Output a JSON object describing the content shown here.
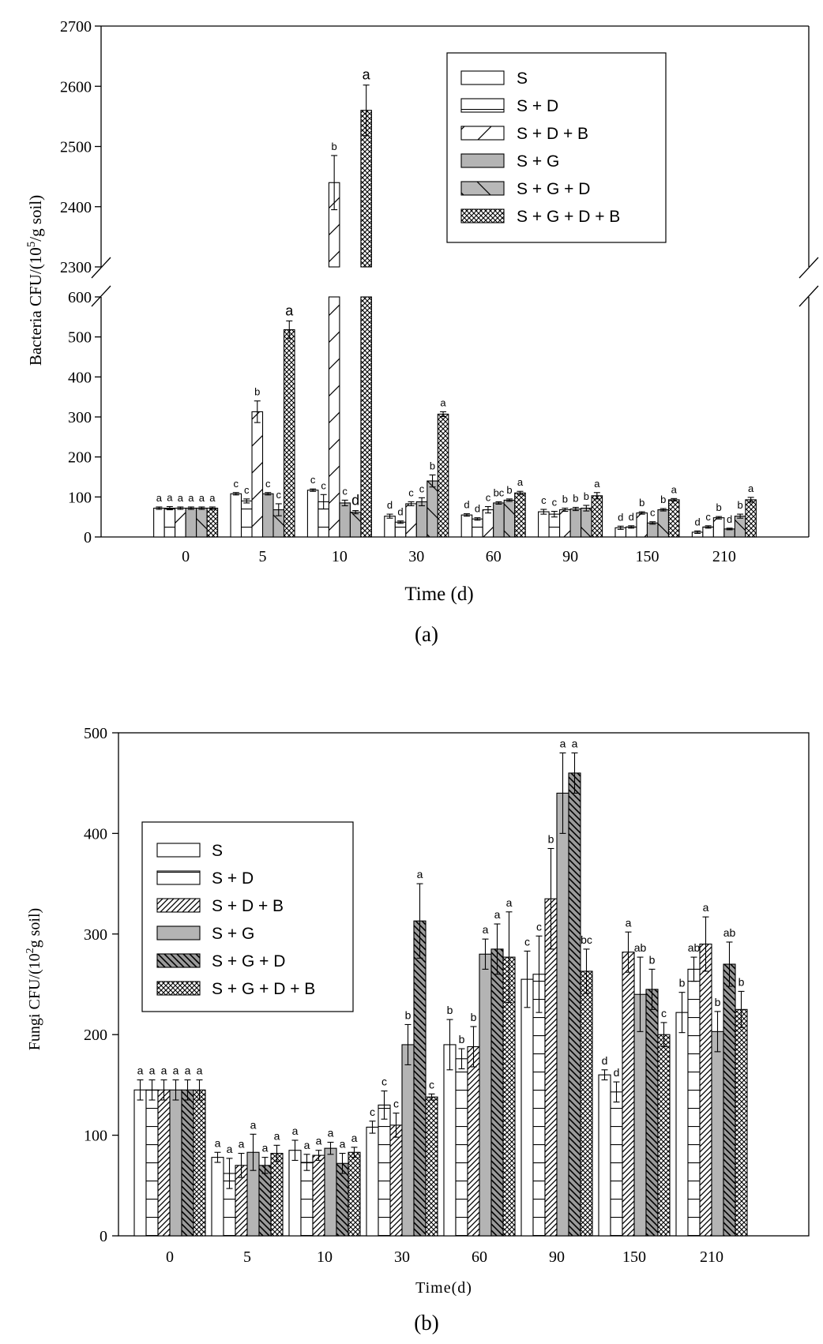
{
  "chart_data": [
    {
      "type": "bar",
      "title": "",
      "caption": "(a)",
      "xlabel": "Time (d)",
      "ylabel": "Bacteria CFU/(10^5/g soil)",
      "ylabel_parts": {
        "pre": "Bacteria CFU/(10",
        "sup": "5",
        "post": "/g soil)"
      },
      "categories": [
        "0",
        "5",
        "10",
        "30",
        "60",
        "90",
        "150",
        "210"
      ],
      "axis_break": {
        "lower_range": [
          0,
          600
        ],
        "upper_range": [
          2300,
          2700
        ]
      },
      "yticks_lower": [
        "0",
        "100",
        "200",
        "300",
        "400",
        "500",
        "600"
      ],
      "yticks_upper": [
        "2300",
        "2400",
        "2500",
        "2600",
        "2700"
      ],
      "legend_position": "top-right",
      "series": [
        {
          "name": "S",
          "pattern": "open",
          "values": [
            72,
            108,
            117,
            52,
            55,
            63,
            23,
            12
          ],
          "errors": [
            3,
            3,
            3,
            5,
            3,
            6,
            4,
            3
          ],
          "letters": [
            "a",
            "c",
            "c",
            "d",
            "d",
            "c",
            "d",
            "d"
          ]
        },
        {
          "name": "S + D",
          "pattern": "horizontal",
          "values": [
            72,
            90,
            88,
            37,
            45,
            57,
            25,
            25
          ],
          "errors": [
            4,
            5,
            18,
            3,
            3,
            7,
            3,
            3
          ],
          "letters": [
            "a",
            "c",
            "c",
            "d",
            "d",
            "c",
            "d",
            "c"
          ]
        },
        {
          "name": "S + D + B",
          "pattern": "wide-diagonal",
          "values": [
            72,
            313,
            2440,
            83,
            68,
            68,
            60,
            48
          ],
          "errors": [
            3,
            27,
            45,
            5,
            8,
            4,
            3,
            3
          ],
          "letters": [
            "a",
            "b",
            "b",
            "c",
            "c",
            "b",
            "b",
            "b"
          ]
        },
        {
          "name": "S + G",
          "pattern": "gray",
          "values": [
            72,
            108,
            85,
            88,
            85,
            70,
            35,
            20
          ],
          "errors": [
            3,
            3,
            7,
            10,
            3,
            4,
            3,
            2
          ],
          "letters": [
            "a",
            "c",
            "c",
            "c",
            "bc",
            "b",
            "c",
            "d"
          ]
        },
        {
          "name": "S + G + D",
          "pattern": "gray-backdiagonal",
          "values": [
            72,
            68,
            62,
            140,
            92,
            72,
            68,
            52
          ],
          "errors": [
            3,
            15,
            4,
            15,
            3,
            7,
            3,
            5
          ],
          "letters": [
            "a",
            "c",
            "d",
            "b",
            "b",
            "b",
            "b",
            "b"
          ]
        },
        {
          "name": "S + G + D + B",
          "pattern": "crosshatch",
          "values": [
            72,
            518,
            2560,
            307,
            110,
            103,
            93,
            93
          ],
          "errors": [
            3,
            22,
            42,
            6,
            4,
            8,
            3,
            6
          ],
          "letters": [
            "a",
            "a",
            "a",
            "a",
            "a",
            "a",
            "a",
            "a"
          ]
        }
      ]
    },
    {
      "type": "bar",
      "title": "",
      "caption": "(b)",
      "xlabel": "Time(d)",
      "ylabel": "Fungi CFU/(10^2g soil)",
      "ylabel_parts": {
        "pre": "Fungi CFU/(10",
        "sup": "2",
        "post": "g soil)"
      },
      "categories": [
        "0",
        "5",
        "10",
        "30",
        "60",
        "90",
        "150",
        "210"
      ],
      "ylim": [
        0,
        500
      ],
      "yticks": [
        "0",
        "100",
        "200",
        "300",
        "400",
        "500"
      ],
      "legend_position": "top-left",
      "series": [
        {
          "name": "S",
          "pattern": "open",
          "values": [
            145,
            78,
            85,
            108,
            190,
            255,
            160,
            222
          ],
          "errors": [
            10,
            5,
            10,
            6,
            25,
            28,
            5,
            20
          ],
          "letters": [
            "a",
            "a",
            "a",
            "c",
            "b",
            "c",
            "d",
            "b"
          ]
        },
        {
          "name": "S + D",
          "pattern": "horizontal",
          "values": [
            145,
            62,
            73,
            130,
            176,
            260,
            143,
            265
          ],
          "errors": [
            10,
            15,
            8,
            14,
            10,
            38,
            10,
            12
          ],
          "letters": [
            "a",
            "a",
            "a",
            "c",
            "b",
            "c",
            "d",
            "ab"
          ]
        },
        {
          "name": "S + D + B",
          "pattern": "dense-diagonal",
          "values": [
            145,
            70,
            80,
            110,
            188,
            335,
            282,
            290
          ],
          "errors": [
            10,
            12,
            5,
            12,
            20,
            50,
            20,
            27
          ],
          "letters": [
            "a",
            "a",
            "a",
            "c",
            "b",
            "b",
            "a",
            "a"
          ]
        },
        {
          "name": "S + G",
          "pattern": "gray",
          "values": [
            145,
            83,
            87,
            190,
            280,
            440,
            240,
            203
          ],
          "errors": [
            10,
            18,
            6,
            20,
            15,
            40,
            37,
            20
          ],
          "letters": [
            "a",
            "a",
            "a",
            "b",
            "a",
            "a",
            "ab",
            "b"
          ]
        },
        {
          "name": "S + G + D",
          "pattern": "gray-diagonal",
          "values": [
            145,
            70,
            72,
            313,
            285,
            460,
            245,
            270
          ],
          "errors": [
            10,
            8,
            10,
            37,
            25,
            20,
            20,
            22
          ],
          "letters": [
            "a",
            "a",
            "a",
            "a",
            "a",
            "a",
            "b",
            "ab"
          ]
        },
        {
          "name": "S + G + D + B",
          "pattern": "crosshatch",
          "values": [
            145,
            82,
            83,
            138,
            277,
            263,
            200,
            225
          ],
          "errors": [
            10,
            8,
            5,
            3,
            45,
            22,
            12,
            18
          ],
          "letters": [
            "a",
            "a",
            "a",
            "c",
            "a",
            "bc",
            "c",
            "b"
          ]
        }
      ]
    }
  ]
}
